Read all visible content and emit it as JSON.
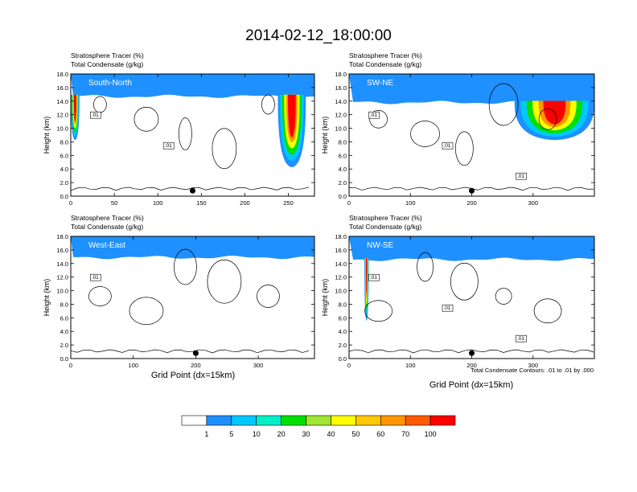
{
  "figure": {
    "title": "2014-02-12_18:00:00",
    "xlabel": "Grid Point (dx=15km)",
    "ylabel": "Height (km)",
    "contour_note": "Total Condensate Contours: .01 to .01 by .000"
  },
  "colorbar": {
    "levels": [
      "1",
      "5",
      "10",
      "20",
      "30",
      "40",
      "50",
      "60",
      "70",
      "100"
    ],
    "colors": [
      "#ffffff",
      "#1e90ff",
      "#00c8ff",
      "#00f0c8",
      "#00e000",
      "#a0e632",
      "#ffff00",
      "#ffc800",
      "#ff9600",
      "#ff5a00",
      "#ff0000"
    ]
  },
  "chart_data": [
    {
      "type": "contour",
      "panel_label": "South-North",
      "field_label": "Stratosphere Tracer   (%)",
      "contour_label": "Total Condensate   (g/kg)",
      "xlim": [
        0,
        280
      ],
      "ylim": [
        0,
        18
      ],
      "xticks": [
        "0",
        "50",
        "100",
        "150",
        "200",
        "250"
      ],
      "yticks": [
        "0.0",
        "2.0",
        "4.0",
        "6.0",
        "8.0",
        "10.0",
        "12.0",
        "14.0",
        "16.0",
        "18.0"
      ],
      "contour_value_labels": [
        ".01",
        ".01"
      ],
      "marker_x": 140,
      "tracer_top_km": 16.3,
      "tracer_band_km": 1.6,
      "intrusions": [
        {
          "x_start": 0,
          "x_end": 10,
          "bottom_km": 8.5
        },
        {
          "x_start": 238,
          "x_end": 270,
          "bottom_km": 4.5
        }
      ]
    },
    {
      "type": "contour",
      "panel_label": "SW-NE",
      "field_label": "Stratosphere Tracer   (%)",
      "contour_label": "Total Condensate   (g/kg)",
      "xlim": [
        0,
        400
      ],
      "ylim": [
        0,
        18
      ],
      "xticks": [
        "0",
        "100",
        "200",
        "300"
      ],
      "yticks": [
        "0.0",
        "2.0",
        "4.0",
        "6.0",
        "8.0",
        "10.0",
        "12.0",
        "14.0",
        "16.0",
        "18.0"
      ],
      "contour_value_labels": [
        ".01",
        ".01",
        ".01"
      ],
      "marker_x": 200,
      "tracer_top_km": 15.8,
      "tracer_band_km": 2.0,
      "intrusions": [
        {
          "x_start": 270,
          "x_end": 400,
          "bottom_km": 8.5
        }
      ]
    },
    {
      "type": "contour",
      "panel_label": "West-East",
      "field_label": "Stratosphere Tracer   (%)",
      "contour_label": "Total Condensate   (g/kg)",
      "xlim": [
        0,
        390
      ],
      "ylim": [
        0,
        18
      ],
      "xticks": [
        "0",
        "100",
        "200",
        "300"
      ],
      "yticks": [
        "0.0",
        "2.0",
        "4.0",
        "6.0",
        "8.0",
        "10.0",
        "12.0",
        "14.0",
        "16.0",
        "18.0"
      ],
      "contour_value_labels": [
        ".01"
      ],
      "marker_x": 200,
      "tracer_top_km": 16.5,
      "tracer_band_km": 1.6,
      "intrusions": []
    },
    {
      "type": "contour",
      "panel_label": "NW-SE",
      "field_label": "Stratosphere Tracer   (%)",
      "contour_label": "Total Condensate   (g/kg)",
      "xlim": [
        0,
        400
      ],
      "ylim": [
        0,
        18
      ],
      "xticks": [
        "0",
        "100",
        "200",
        "300"
      ],
      "yticks": [
        "0.0",
        "2.0",
        "4.0",
        "6.0",
        "8.0",
        "10.0",
        "12.0",
        "14.0",
        "16.0",
        "18.0"
      ],
      "contour_value_labels": [
        ".01",
        ".01",
        ".01"
      ],
      "marker_x": 200,
      "tracer_top_km": 16.2,
      "tracer_band_km": 1.6,
      "intrusions": [
        {
          "x_start": 25,
          "x_end": 32,
          "bottom_km": 5.8
        }
      ]
    }
  ]
}
